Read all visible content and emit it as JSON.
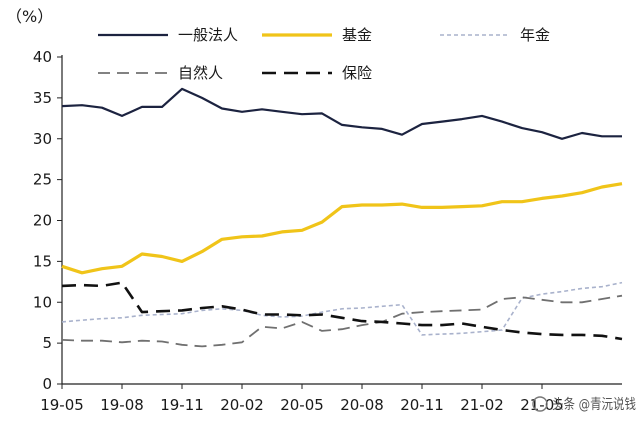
{
  "chart_data": {
    "type": "line",
    "unit_label": "（%）",
    "x": [
      "19-05",
      "19-06",
      "19-07",
      "19-08",
      "19-09",
      "19-10",
      "19-11",
      "19-12",
      "20-01",
      "20-02",
      "20-03",
      "20-04",
      "20-05",
      "20-06",
      "20-07",
      "20-08",
      "20-09",
      "20-10",
      "20-11",
      "20-12",
      "21-01",
      "21-02",
      "21-03",
      "21-04",
      "21-05",
      "21-06",
      "21-07",
      "21-08",
      "21-09"
    ],
    "x_tick_labels": [
      "19-05",
      "19-08",
      "19-11",
      "20-02",
      "20-05",
      "20-08",
      "20-11",
      "21-02",
      "21-05"
    ],
    "ylim": [
      0,
      40
    ],
    "y_ticks": [
      "0",
      "5",
      "10",
      "15",
      "20",
      "25",
      "30",
      "35",
      "40"
    ],
    "grid": false,
    "series": [
      {
        "name": "一般法人",
        "color": "#1c2340",
        "style": "solid",
        "values": [
          34,
          34.1,
          33.8,
          32.8,
          33.9,
          33.9,
          36.1,
          35,
          33.7,
          33.3,
          33.6,
          33.3,
          33,
          33.1,
          31.7,
          31.4,
          31.2,
          30.5,
          31.8,
          32.1,
          32.4,
          32.8,
          32.1,
          31.3,
          30.8,
          30.0,
          30.7,
          30.3,
          30.3
        ]
      },
      {
        "name": "基金",
        "color": "#f0c419",
        "style": "solid",
        "values": [
          14.4,
          13.6,
          14.1,
          14.4,
          15.9,
          15.6,
          15.0,
          16.2,
          17.7,
          18.0,
          18.1,
          18.6,
          18.8,
          19.8,
          21.7,
          21.9,
          21.9,
          22.0,
          21.6,
          21.6,
          21.7,
          21.8,
          22.3,
          22.3,
          22.7,
          23.0,
          23.4,
          24.1,
          24.5
        ]
      },
      {
        "name": "年金",
        "color": "#a9b2cc",
        "style": "dotted",
        "values": [
          7.6,
          7.8,
          8.0,
          8.1,
          8.4,
          8.5,
          8.6,
          9.0,
          9.2,
          9.0,
          8.4,
          8.2,
          8.3,
          8.8,
          9.2,
          9.3,
          9.5,
          9.7,
          6.0,
          6.1,
          6.2,
          6.4,
          6.6,
          10.5,
          11.0,
          11.3,
          11.7,
          11.9,
          12.4
        ]
      },
      {
        "name": "自然人",
        "color": "#707070",
        "style": "dashed",
        "values": [
          5.4,
          5.3,
          5.3,
          5.1,
          5.3,
          5.2,
          4.8,
          4.6,
          4.8,
          5.1,
          7.0,
          6.8,
          7.6,
          6.5,
          6.7,
          7.2,
          7.6,
          8.6,
          8.8,
          8.9,
          9.0,
          9.1,
          10.4,
          10.6,
          10.3,
          10.0,
          10.0,
          10.4,
          10.8
        ]
      },
      {
        "name": "保险",
        "color": "#111111",
        "style": "longdash",
        "values": [
          12.0,
          12.1,
          12.0,
          12.4,
          8.8,
          8.9,
          9.0,
          9.3,
          9.5,
          9.1,
          8.5,
          8.5,
          8.4,
          8.5,
          8.1,
          7.7,
          7.6,
          7.4,
          7.2,
          7.2,
          7.4,
          7.0,
          6.6,
          6.3,
          6.1,
          6.0,
          6.0,
          5.9,
          5.5
        ]
      }
    ],
    "legend_position": "top"
  },
  "watermark": {
    "text": "头条 @青沅说钱"
  }
}
